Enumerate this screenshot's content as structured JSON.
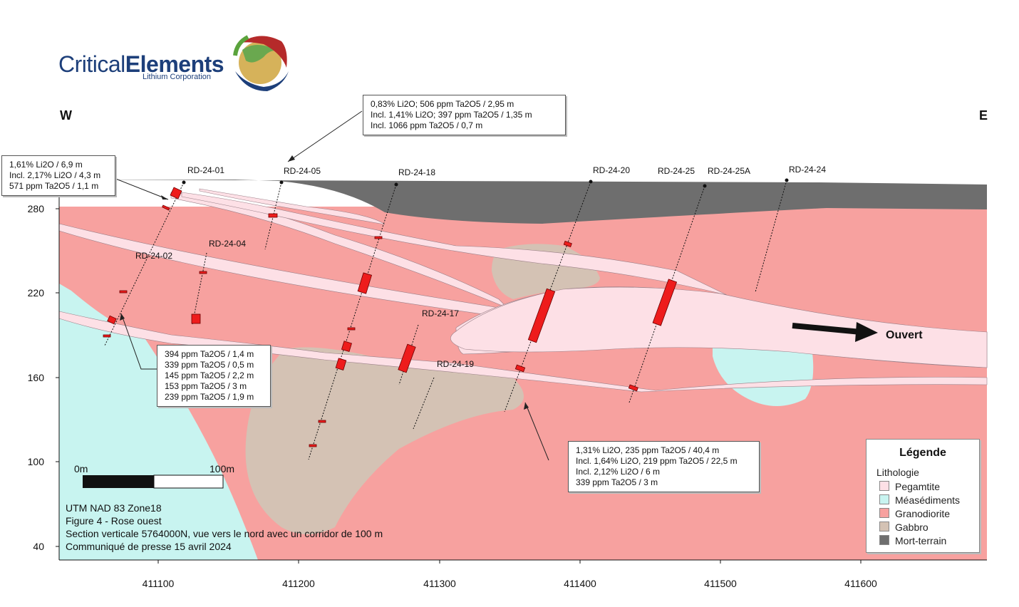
{
  "logo": {
    "name_part1": "Critical",
    "name_part2": "Elements",
    "subtitle": "Lithium Corporation"
  },
  "directions": {
    "west": "W",
    "east": "E"
  },
  "y_axis": {
    "ticks": [
      "280",
      "220",
      "160",
      "100",
      "40"
    ]
  },
  "x_axis": {
    "ticks": [
      "411100",
      "411200",
      "411300",
      "411400",
      "411500",
      "411600"
    ]
  },
  "drill_holes": [
    "RD-24-01",
    "RD-24-05",
    "RD-24-18",
    "RD-24-20",
    "RD-24-25",
    "RD-24-25A",
    "RD-24-24",
    "RD-24-02",
    "RD-24-04",
    "RD-24-17",
    "RD-24-19"
  ],
  "callouts": {
    "top": [
      "0,83% Li2O; 506 ppm Ta2O5 /  2,95 m",
      "Incl. 1,41% Li2O; 397 ppm Ta2O5 /  1,35 m",
      "Incl. 1066 ppm Ta2O5 / 0,7 m"
    ],
    "left": [
      "1,61% Li2O / 6,9 m",
      "Incl. 2,17% Li2O / 4,3 m",
      "571 ppm Ta2O5 / 1,1 m"
    ],
    "middle": [
      "394 ppm Ta2O5 / 1,4 m",
      "339 ppm Ta2O5 / 0,5 m",
      "145 ppm Ta2O5 / 2,2 m",
      "153 ppm Ta2O5 / 3 m",
      "239 ppm Ta2O5 / 1,9 m"
    ],
    "bottom": [
      "1,31% Li2O, 235 ppm Ta2O5 / 40,4 m",
      "Incl. 1,64% Li2O, 219 ppm Ta2O5 / 22,5 m",
      "Incl. 2,12% Li2O / 6 m",
      "339 ppm Ta2O5 / 3 m"
    ]
  },
  "ouvert": "Ouvert",
  "scale": {
    "start": "0m",
    "end": "100m"
  },
  "notes": [
    "UTM NAD 83 Zone18",
    "Figure 4 - Rose ouest",
    "Section verticale 5764000N, vue vers le nord avec un corridor de 100 m",
    "Communiqué de presse 15 avril 2024"
  ],
  "legend": {
    "title": "Légende",
    "subtitle": "Lithologie",
    "items": [
      {
        "label": "Pegamtite",
        "color": "#fde0e6"
      },
      {
        "label": "Méasédiments",
        "color": "#c8f4f0"
      },
      {
        "label": "Granodiorite",
        "color": "#f7a19f"
      },
      {
        "label": "Gabbro",
        "color": "#d4c2b4"
      },
      {
        "label": "Mort-terrain",
        "color": "#6e6e6e"
      }
    ]
  },
  "colors": {
    "granodiorite": "#f7a19f",
    "metasediments": "#c8f4f0",
    "gabbro": "#d4c2b4",
    "overburden": "#6e6e6e",
    "pegmatite": "#fde0e6",
    "mineralized": "#ee1c1c"
  }
}
